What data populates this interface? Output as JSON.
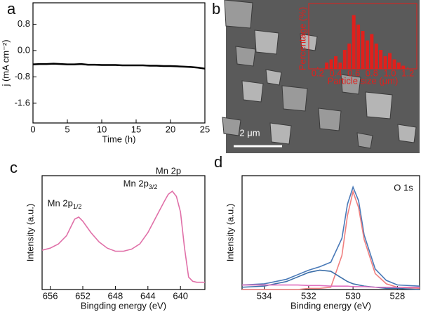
{
  "chart_data": [
    {
      "type": "line",
      "panel": "a",
      "xlabel": "Time (h)",
      "ylabel": "j (mA cm⁻²)",
      "x": [
        0,
        1,
        2,
        3,
        4,
        5,
        6,
        7,
        8,
        9,
        10,
        11,
        12,
        13,
        14,
        15,
        16,
        17,
        18,
        19,
        20,
        21,
        22,
        23,
        24,
        25
      ],
      "series": [
        {
          "color": "#000000",
          "values": [
            -0.42,
            -0.41,
            -0.41,
            -0.4,
            -0.41,
            -0.42,
            -0.42,
            -0.41,
            -0.43,
            -0.43,
            -0.44,
            -0.44,
            -0.44,
            -0.45,
            -0.45,
            -0.45,
            -0.45,
            -0.46,
            -0.46,
            -0.47,
            -0.47,
            -0.48,
            -0.49,
            -0.5,
            -0.52,
            -0.55
          ]
        }
      ],
      "xlim": [
        0,
        25
      ],
      "xticks": [
        0,
        5,
        10,
        15,
        20,
        25
      ],
      "ylim": [
        -2.2,
        1.45
      ],
      "yticks": [
        0.8,
        {
          "value": 0,
          "label": "0.0"
        },
        -0.8,
        -1.6
      ]
    },
    {
      "type": "image-inset-bar",
      "panel": "b",
      "scale_bar": "2 μm",
      "xlabel": "Particle size (μm)",
      "ylabel": "Percentage (%)",
      "color": "#e0201c",
      "x": [
        0.3,
        0.35,
        0.4,
        0.45,
        0.5,
        0.55,
        0.6,
        0.65,
        0.7,
        0.75,
        0.8,
        0.85,
        0.9,
        0.95,
        1.0,
        1.05,
        1.1,
        1.15
      ],
      "values": [
        2,
        3,
        4,
        2,
        6,
        8,
        17,
        14,
        12,
        9,
        11,
        8,
        6,
        4,
        5,
        3,
        2,
        1
      ],
      "xlim": [
        0.1,
        1.3
      ],
      "xticks": [
        0.2,
        0.4,
        0.6,
        0.8,
        {
          "value": 1,
          "label": "1.0"
        },
        1.2
      ],
      "ylim": [
        0,
        20
      ]
    },
    {
      "type": "line",
      "panel": "c",
      "xlabel": "Bingding energy (eV)",
      "ylabel": "Intensity (a.u.)",
      "annotations": [
        {
          "text": "Mn 2p",
          "sub": "1/2"
        },
        {
          "text": "Mn 2p",
          "sub": "3/2"
        },
        {
          "text": "Mn 2p"
        }
      ],
      "x": [
        657,
        656,
        655,
        654,
        653,
        652.5,
        652,
        651,
        650,
        649,
        648,
        647,
        646,
        645,
        644,
        643,
        642,
        641.5,
        641,
        640.5,
        640,
        639.5,
        639,
        638.5,
        638,
        637
      ],
      "series": [
        {
          "color": "#e070a8",
          "values": [
            38,
            40,
            44,
            52,
            68,
            70,
            66,
            55,
            46,
            40,
            37,
            37,
            39,
            44,
            55,
            70,
            85,
            92,
            95,
            90,
            75,
            40,
            12,
            8,
            7,
            7
          ]
        }
      ],
      "xlim": [
        657,
        637
      ],
      "xticks": [
        656,
        652,
        648,
        644,
        640
      ],
      "ylim": [
        0,
        110
      ]
    },
    {
      "type": "line",
      "panel": "d",
      "xlabel": "Binding energy (eV)",
      "ylabel": "Intensity (a.u.)",
      "annotations": [
        {
          "text": "O 1s"
        }
      ],
      "x": [
        535,
        534,
        533,
        532.5,
        532,
        531.5,
        531,
        530.5,
        530.25,
        530,
        529.75,
        529.5,
        529,
        528.5,
        528,
        527
      ],
      "series": [
        {
          "color": "#4a7ab8",
          "values": [
            4,
            5,
            9,
            13,
            17,
            20,
            24,
            45,
            75,
            90,
            78,
            48,
            18,
            8,
            4,
            3
          ]
        },
        {
          "color": "#f08080",
          "values": [
            0,
            0,
            0,
            0,
            1,
            1,
            2,
            30,
            65,
            86,
            72,
            44,
            14,
            5,
            2,
            1
          ]
        },
        {
          "color": "#3b6ea8",
          "values": [
            2,
            3,
            7,
            11,
            15,
            17,
            16,
            10,
            7,
            5,
            4,
            3,
            2,
            1,
            1,
            0
          ]
        },
        {
          "color": "#e070c0",
          "values": [
            4,
            4,
            4,
            4,
            3.5,
            3.5,
            3,
            3,
            3,
            2.5,
            2.5,
            2.5,
            2,
            2,
            2,
            2
          ]
        }
      ],
      "xlim": [
        535,
        527
      ],
      "xticks": [
        534,
        532,
        530,
        528
      ],
      "ylim": [
        0,
        100
      ]
    }
  ]
}
